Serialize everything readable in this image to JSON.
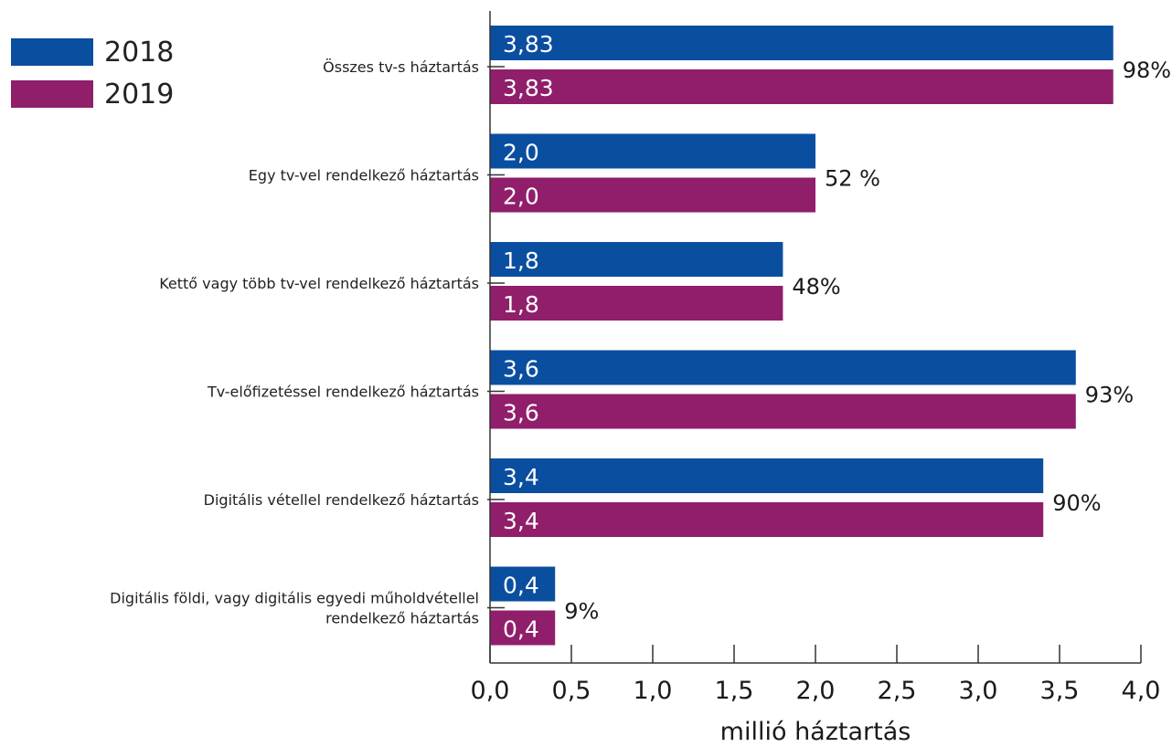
{
  "chart_data": {
    "type": "bar",
    "orientation": "horizontal",
    "categories": [
      [
        "Összes tv-s háztartás"
      ],
      [
        "Egy tv-vel rendelkező háztartás"
      ],
      [
        "Kettő vagy több tv-vel rendelkező háztartás"
      ],
      [
        "Tv-előfizetéssel rendelkező háztartás"
      ],
      [
        "Digitális vétellel rendelkező háztartás"
      ],
      [
        "Digitális földi, vagy digitális egyedi műholdvétellel",
        "rendelkező háztartás"
      ]
    ],
    "series": [
      {
        "name": "2018",
        "color": "#0a4ea0",
        "values": [
          3.83,
          2.0,
          1.8,
          3.6,
          3.4,
          0.4
        ],
        "labels": [
          "3,83",
          "2,0",
          "1,8",
          "3,6",
          "3,4",
          "0,4"
        ]
      },
      {
        "name": "2019",
        "color": "#901e6b",
        "values": [
          3.83,
          2.0,
          1.8,
          3.6,
          3.4,
          0.4
        ],
        "labels": [
          "3,83",
          "2,0",
          "1,8",
          "3,6",
          "3,4",
          "0,4"
        ]
      }
    ],
    "shares": [
      "98%",
      "52 %",
      "48%",
      "93%",
      "90%",
      "9%"
    ],
    "xlabel": "millió háztartás",
    "xlim": [
      0,
      4.0
    ],
    "xticks": [
      0,
      0.5,
      1.0,
      1.5,
      2.0,
      2.5,
      3.0,
      3.5,
      4.0
    ],
    "xtick_labels": [
      "0,0",
      "0,5",
      "1,0",
      "1,5",
      "2,0",
      "2,5",
      "3,0",
      "3,5",
      "4,0"
    ],
    "legend": "top-left",
    "grid": false
  }
}
